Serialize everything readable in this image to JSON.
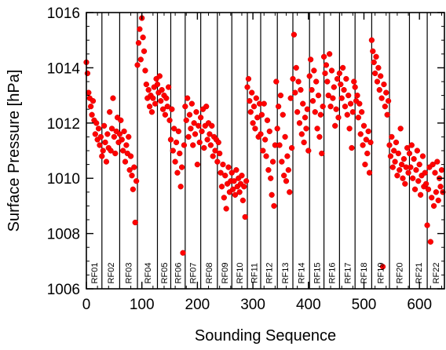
{
  "chart_data": {
    "type": "scatter",
    "xlabel": "Sounding Sequence",
    "ylabel": "Surface Pressure [hPa]",
    "xlim": [
      0,
      645
    ],
    "ylim": [
      1006,
      1016
    ],
    "xticks": [
      0,
      100,
      200,
      300,
      400,
      500,
      600
    ],
    "yticks": [
      1006,
      1008,
      1010,
      1012,
      1014,
      1016
    ],
    "grid": false,
    "marker_color": "#ff0000",
    "marker_edge_color": "#cc0000",
    "flights": [
      {
        "label": "RF01",
        "start": 0,
        "end": 28
      },
      {
        "label": "RF02",
        "start": 28,
        "end": 60
      },
      {
        "label": "RF03",
        "start": 60,
        "end": 92
      },
      {
        "label": "RF04",
        "start": 92,
        "end": 128
      },
      {
        "label": "RF05",
        "start": 128,
        "end": 152
      },
      {
        "label": "RF06",
        "start": 152,
        "end": 178
      },
      {
        "label": "RF07",
        "start": 178,
        "end": 206
      },
      {
        "label": "RF08",
        "start": 206,
        "end": 236
      },
      {
        "label": "RF09",
        "start": 236,
        "end": 262
      },
      {
        "label": "RF10",
        "start": 262,
        "end": 290
      },
      {
        "label": "RF11",
        "start": 290,
        "end": 314
      },
      {
        "label": "RF12",
        "start": 314,
        "end": 344
      },
      {
        "label": "RF13",
        "start": 344,
        "end": 372
      },
      {
        "label": "RF14",
        "start": 372,
        "end": 402
      },
      {
        "label": "RF15",
        "start": 402,
        "end": 428
      },
      {
        "label": "RF16",
        "start": 428,
        "end": 456
      },
      {
        "label": "RF17",
        "start": 456,
        "end": 484
      },
      {
        "label": "RF18",
        "start": 484,
        "end": 514
      },
      {
        "label": "RF19",
        "start": 514,
        "end": 546
      },
      {
        "label": "RF20",
        "start": 546,
        "end": 582
      },
      {
        "label": "RF21",
        "start": 582,
        "end": 614
      },
      {
        "label": "RF22",
        "start": 614,
        "end": 645
      }
    ],
    "series": [
      {
        "x": [
          0,
          2,
          4,
          6,
          8,
          10,
          12,
          14,
          16,
          18,
          20,
          22,
          24,
          26,
          28,
          30,
          32,
          34,
          36,
          38,
          40,
          42,
          44,
          46,
          48,
          50,
          52,
          54,
          56,
          58,
          60,
          62,
          64,
          66,
          68,
          70,
          72,
          74,
          76,
          78,
          80,
          82,
          84,
          86,
          88,
          90,
          92,
          94,
          96,
          98,
          100,
          102,
          104,
          106,
          108,
          110,
          112,
          114,
          116,
          118,
          120,
          122,
          124,
          126,
          128,
          130,
          132,
          134,
          136,
          138,
          140,
          142,
          144,
          146,
          148,
          150,
          152,
          154,
          156,
          158,
          160,
          162,
          164,
          166,
          168,
          170,
          172,
          174,
          176,
          178,
          180,
          182,
          184,
          186,
          188,
          190,
          192,
          194,
          196,
          198,
          200,
          202,
          204,
          206,
          208,
          210,
          212,
          214,
          216,
          218,
          220,
          222,
          224,
          226,
          228,
          230,
          232,
          234,
          236,
          238,
          240,
          242,
          244,
          246,
          248,
          250,
          252,
          254,
          256,
          258,
          260,
          262,
          264,
          266,
          268,
          270,
          272,
          274,
          276,
          278,
          280,
          282,
          284,
          286,
          288,
          290,
          292,
          294,
          296,
          298,
          300,
          302,
          304,
          306,
          308,
          310,
          312,
          314,
          316,
          318,
          320,
          322,
          324,
          326,
          328,
          330,
          332,
          334,
          336,
          338,
          340,
          342,
          344,
          346,
          348,
          350,
          352,
          354,
          356,
          358,
          360,
          362,
          364,
          366,
          368,
          370,
          372,
          374,
          376,
          378,
          380,
          382,
          384,
          386,
          388,
          390,
          392,
          394,
          396,
          398,
          400,
          402,
          404,
          406,
          408,
          410,
          412,
          414,
          416,
          418,
          420,
          422,
          424,
          426,
          428,
          430,
          432,
          434,
          436,
          438,
          440,
          442,
          444,
          446,
          448,
          450,
          452,
          454,
          456,
          458,
          460,
          462,
          464,
          466,
          468,
          470,
          472,
          474,
          476,
          478,
          480,
          482,
          484,
          486,
          488,
          490,
          492,
          494,
          496,
          498,
          500,
          502,
          504,
          506,
          508,
          510,
          512,
          514,
          516,
          518,
          520,
          522,
          524,
          526,
          528,
          530,
          532,
          534,
          536,
          538,
          540,
          542,
          544,
          546,
          548,
          550,
          552,
          554,
          556,
          558,
          560,
          562,
          564,
          566,
          568,
          570,
          572,
          574,
          576,
          578,
          580,
          582,
          584,
          586,
          588,
          590,
          592,
          594,
          596,
          598,
          600,
          602,
          604,
          606,
          608,
          610,
          612,
          614,
          616,
          618,
          620,
          622,
          624,
          626,
          628,
          630,
          632,
          634,
          636,
          638,
          640,
          642
        ],
        "y": [
          1014.2,
          1013.8,
          1013.1,
          1012.9,
          1012.6,
          1012.3,
          1012.8,
          1012.1,
          1011.6,
          1012.0,
          1011.4,
          1011.8,
          1011.2,
          1011.5,
          1010.8,
          1011.0,
          1011.9,
          1011.3,
          1010.6,
          1011.6,
          1011.1,
          1012.4,
          1011.0,
          1011.8,
          1012.9,
          1011.5,
          1010.9,
          1011.7,
          1012.2,
          1011.3,
          1011.6,
          1012.1,
          1011.4,
          1011.0,
          1011.7,
          1010.6,
          1011.2,
          1010.9,
          1011.5,
          1010.3,
          1010.8,
          1010.1,
          1009.6,
          1010.4,
          1008.4,
          1009.9,
          1014.1,
          1014.9,
          1015.4,
          1014.3,
          1015.8,
          1015.1,
          1014.6,
          1013.9,
          1013.4,
          1012.9,
          1013.2,
          1012.6,
          1013.0,
          1012.4,
          1012.9,
          1013.3,
          1012.7,
          1013.6,
          1013.4,
          1013.1,
          1013.7,
          1012.8,
          1013.2,
          1012.5,
          1013.0,
          1012.3,
          1012.9,
          1012.6,
          1013.3,
          1012.1,
          1011.4,
          1012.5,
          1011.0,
          1011.8,
          1010.6,
          1011.3,
          1010.2,
          1011.7,
          1010.9,
          1009.7,
          1010.4,
          1007.3,
          1011.2,
          1012.6,
          1012.1,
          1012.9,
          1011.5,
          1012.3,
          1011.8,
          1012.7,
          1011.2,
          1012.0,
          1011.6,
          1012.4,
          1010.5,
          1011.9,
          1011.3,
          1012.2,
          1011.7,
          1012.5,
          1011.1,
          1011.9,
          1012.6,
          1011.4,
          1012.0,
          1011.6,
          1011.2,
          1011.9,
          1010.8,
          1011.5,
          1011.0,
          1011.4,
          1010.6,
          1011.3,
          1010.9,
          1010.2,
          1009.7,
          1010.5,
          1009.3,
          1010.1,
          1008.9,
          1009.8,
          1010.4,
          1009.5,
          1009.9,
          1010.2,
          1009.6,
          1009.9,
          1009.4,
          1010.3,
          1009.7,
          1010.0,
          1009.5,
          1009.8,
          1010.1,
          1009.2,
          1009.7,
          1008.6,
          1009.9,
          1013.3,
          1013.6,
          1012.8,
          1012.4,
          1013.1,
          1012.0,
          1012.6,
          1011.8,
          1012.9,
          1012.2,
          1011.5,
          1012.7,
          1011.6,
          1012.3,
          1011.0,
          1012.7,
          1011.4,
          1010.8,
          1012.1,
          1010.3,
          1011.7,
          1010.0,
          1009.4,
          1010.6,
          1009.0,
          1011.2,
          1013.5,
          1011.8,
          1012.6,
          1011.2,
          1013.0,
          1010.6,
          1012.3,
          1010.1,
          1011.5,
          1009.9,
          1010.8,
          1010.3,
          1009.5,
          1012.9,
          1011.1,
          1013.6,
          1015.2,
          1013.1,
          1014.0,
          1012.4,
          1013.5,
          1012.0,
          1013.2,
          1011.6,
          1012.7,
          1011.3,
          1012.2,
          1011.8,
          1012.5,
          1011.0,
          1013.7,
          1014.3,
          1013.2,
          1012.8,
          1013.9,
          1012.4,
          1013.5,
          1011.8,
          1013.0,
          1011.5,
          1012.3,
          1010.9,
          1012.6,
          1014.4,
          1013.8,
          1014.1,
          1013.5,
          1013.0,
          1014.5,
          1012.6,
          1013.9,
          1012.9,
          1013.3,
          1011.9,
          1012.5,
          1013.6,
          1012.2,
          1013.8,
          1013.4,
          1012.9,
          1014.0,
          1013.2,
          1012.6,
          1013.6,
          1012.3,
          1013.0,
          1011.8,
          1012.7,
          1011.1,
          1012.4,
          1013.5,
          1013.3,
          1012.8,
          1013.0,
          1012.2,
          1012.7,
          1011.6,
          1012.4,
          1011.2,
          1011.9,
          1010.5,
          1011.4,
          1010.9,
          1011.7,
          1010.2,
          1011.3,
          1015.0,
          1014.6,
          1014.2,
          1013.8,
          1014.4,
          1013.5,
          1014.0,
          1013.2,
          1013.7,
          1012.9,
          1006.8,
          1013.4,
          1012.6,
          1013.1,
          1012.3,
          1012.8,
          1011.2,
          1010.8,
          1011.5,
          1010.4,
          1011.0,
          1010.6,
          1011.3,
          1010.1,
          1010.9,
          1010.3,
          1011.8,
          1010.5,
          1010.0,
          1010.7,
          1009.8,
          1010.4,
          1011.1,
          1010.2,
          1010.9,
          1010.4,
          1011.2,
          1010.0,
          1010.7,
          1009.6,
          1010.3,
          1011.0,
          1009.9,
          1010.5,
          1009.4,
          1010.1,
          1010.8,
          1009.7,
          1010.2,
          1009.8,
          1008.3,
          1009.6,
          1010.4,
          1007.7,
          1009.3,
          1010.5,
          1009.0,
          1010.2,
          1009.5,
          1010.6,
          1009.2,
          1010.0,
          1009.7,
          1010.3,
          1009.5
        ]
      }
    ]
  }
}
